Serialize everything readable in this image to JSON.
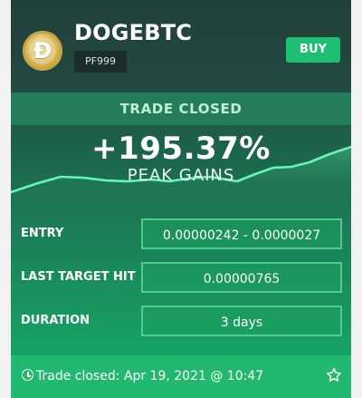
{
  "signal": {
    "pair": "DOGEBTC",
    "tag": "PF999",
    "buy_label": "BUY",
    "status": "TRADE CLOSED",
    "gain_value": "+195.37%",
    "gain_label": "PEAK GAINS"
  },
  "rows": [
    {
      "label": "ENTRY",
      "value": "0.00000242 - 0.0000027"
    },
    {
      "label": "LAST TARGET HIT",
      "value": "0.00000765"
    },
    {
      "label": "DURATION",
      "value": "3 days"
    }
  ],
  "footer": {
    "closed_text": "Trade closed: Apr 19, 2021 @ 10:47"
  },
  "icons": {
    "logo": "dogecoin-logo",
    "footer_left": "clock-icon",
    "footer_right": "star-icon"
  },
  "colors": {
    "buy": "#1fbf73",
    "status_bar": "#257c5a",
    "footer": "#22b86f"
  }
}
